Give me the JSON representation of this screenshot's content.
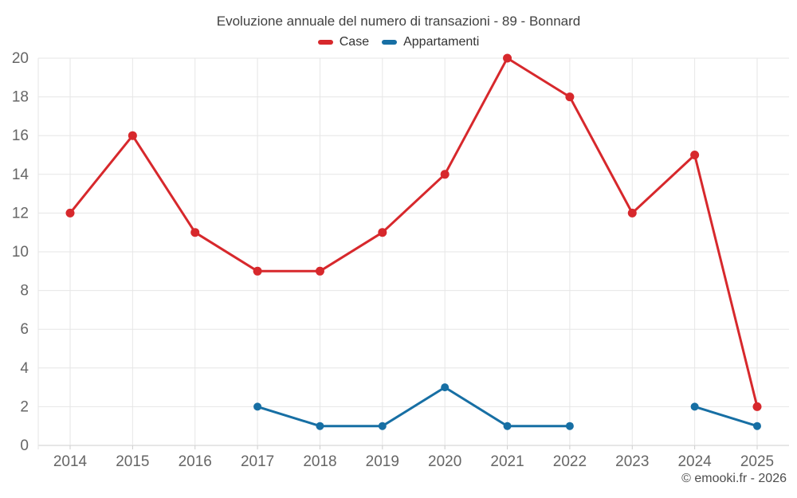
{
  "chart_data": {
    "type": "line",
    "title": "Evoluzione annuale del numero di transazioni - 89 - Bonnard",
    "categories": [
      "2014",
      "2015",
      "2016",
      "2017",
      "2018",
      "2019",
      "2020",
      "2021",
      "2022",
      "2023",
      "2024",
      "2025"
    ],
    "series": [
      {
        "name": "Case",
        "color": "#d7282c",
        "values": [
          12,
          16,
          11,
          9,
          9,
          11,
          14,
          20,
          18,
          12,
          15,
          2
        ]
      },
      {
        "name": "Appartamenti",
        "color": "#176fa4",
        "values": [
          null,
          null,
          null,
          2,
          1,
          1,
          3,
          1,
          1,
          null,
          2,
          1
        ]
      }
    ],
    "ylim": [
      0,
      20
    ],
    "ytick_step": 2,
    "grid": true,
    "legend_position": "top",
    "xlabel": "",
    "ylabel": ""
  },
  "footer": {
    "credit": "© emooki.fr - 2026"
  },
  "ui_colors": {
    "gridline": "#e6e6e6",
    "axis_line": "#cccccc",
    "tick_label": "#666666",
    "title_text": "#414141",
    "legend_text": "#333333",
    "credit_text": "#4d4d4d",
    "background": "#ffffff"
  }
}
